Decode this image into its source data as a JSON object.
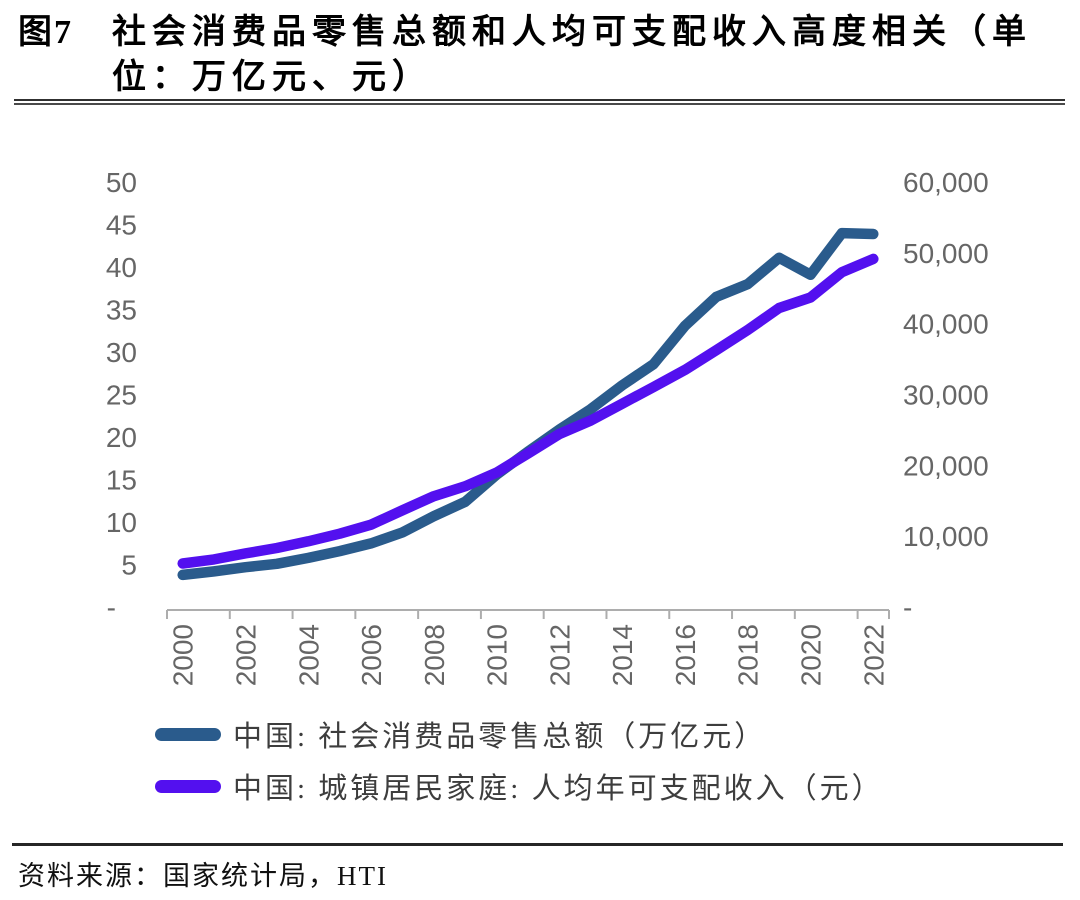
{
  "figure": {
    "label": "图7",
    "title_line1": "社会消费品零售总额和人均可支配收入高度相关（单",
    "title_line2": "位：万亿元、元）"
  },
  "source_line": "资料来源：国家统计局，HTI",
  "legend": [
    {
      "label": "中国: 社会消费品零售总额（万亿元）",
      "color": "#2A5B8C"
    },
    {
      "label": "中国: 城镇居民家庭: 人均年可支配收入（元）",
      "color": "#5310EF"
    }
  ],
  "chart_data": {
    "type": "line",
    "title": "社会消费品零售总额和人均可支配收入高度相关（单位：万亿元、元）",
    "grid": false,
    "legend_position": "bottom",
    "categories": [
      2000,
      2001,
      2002,
      2003,
      2004,
      2005,
      2006,
      2007,
      2008,
      2009,
      2010,
      2011,
      2012,
      2013,
      2014,
      2015,
      2016,
      2017,
      2018,
      2019,
      2020,
      2021,
      2022
    ],
    "x_tick_labels": [
      "2000",
      "2002",
      "2004",
      "2006",
      "2008",
      "2010",
      "2012",
      "2014",
      "2016",
      "2018",
      "2020",
      "2022"
    ],
    "series": [
      {
        "name": "中国: 社会消费品零售总额（万亿元）",
        "axis": "left",
        "color": "#2A5B8C",
        "values": [
          3.9,
          4.3,
          4.8,
          5.2,
          5.9,
          6.7,
          7.6,
          8.9,
          10.8,
          12.5,
          15.7,
          18.4,
          21.0,
          23.4,
          26.2,
          28.7,
          33.2,
          36.6,
          38.1,
          41.2,
          39.2,
          44.1,
          44.0
        ]
      },
      {
        "name": "中国: 城镇居民家庭: 人均年可支配收入（元）",
        "axis": "right",
        "color": "#5310EF",
        "values": [
          6280,
          6860,
          7703,
          8472,
          9422,
          10493,
          11759,
          13786,
          15781,
          17175,
          19109,
          21810,
          24565,
          26467,
          28844,
          31195,
          33616,
          36396,
          39251,
          42359,
          43834,
          47412,
          49283
        ]
      }
    ],
    "left_axis": {
      "min": 0,
      "max": 50,
      "tick_labels": [
        "50",
        "45",
        "40",
        "35",
        "30",
        "25",
        "20",
        "15",
        "10",
        "5",
        "-"
      ],
      "tick_values": [
        50,
        45,
        40,
        35,
        30,
        25,
        20,
        15,
        10,
        5,
        0
      ]
    },
    "right_axis": {
      "min": 0,
      "max": 60000,
      "tick_labels": [
        "60,000",
        "50,000",
        "40,000",
        "30,000",
        "20,000",
        "10,000",
        "-"
      ],
      "tick_values": [
        60000,
        50000,
        40000,
        30000,
        20000,
        10000,
        0
      ]
    }
  }
}
